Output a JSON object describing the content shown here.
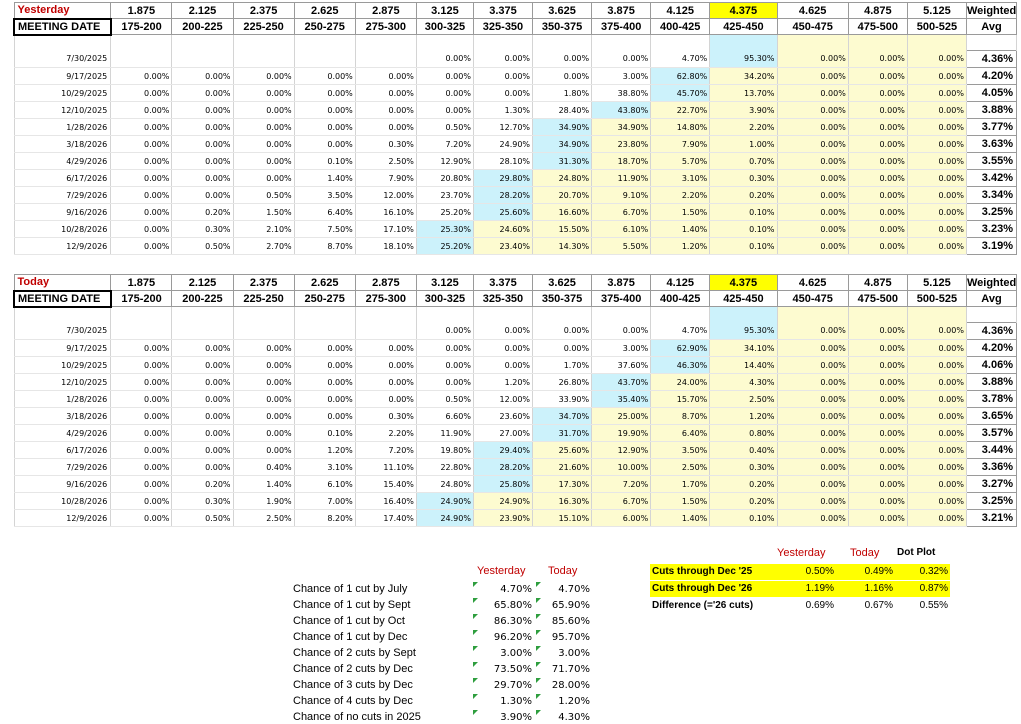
{
  "colors": {
    "red_label": "#c00000",
    "selected_header": "#ffff00",
    "highlight_cell": "#ccf2fb",
    "yellow_cell": "#fdfbd0"
  },
  "yesterday": {
    "label": "Yesterday",
    "meeting_date_label": "MEETING DATE",
    "weighted_label": "Weighted",
    "avg_label": "Avg",
    "mids": [
      "1.875",
      "2.125",
      "2.375",
      "2.625",
      "2.875",
      "3.125",
      "3.375",
      "3.625",
      "3.875",
      "4.125",
      "4.375",
      "4.625",
      "4.875",
      "5.125"
    ],
    "ranges": [
      "175-200",
      "200-225",
      "225-250",
      "250-275",
      "275-300",
      "300-325",
      "325-350",
      "350-375",
      "375-400",
      "400-425",
      "425-450",
      "450-475",
      "475-500",
      "500-525"
    ],
    "rows": [
      {
        "date": "7/30/2025",
        "vals": [
          "",
          "",
          "",
          "",
          "",
          "0.00%",
          "0.00%",
          "0.00%",
          "0.00%",
          "4.70%",
          "95.30%",
          "0.00%",
          "0.00%",
          "0.00%"
        ],
        "avg": "4.36%"
      },
      {
        "date": "9/17/2025",
        "vals": [
          "0.00%",
          "0.00%",
          "0.00%",
          "0.00%",
          "0.00%",
          "0.00%",
          "0.00%",
          "0.00%",
          "3.00%",
          "62.80%",
          "34.20%",
          "0.00%",
          "0.00%",
          "0.00%"
        ],
        "avg": "4.20%"
      },
      {
        "date": "10/29/2025",
        "vals": [
          "0.00%",
          "0.00%",
          "0.00%",
          "0.00%",
          "0.00%",
          "0.00%",
          "0.00%",
          "1.80%",
          "38.80%",
          "45.70%",
          "13.70%",
          "0.00%",
          "0.00%",
          "0.00%"
        ],
        "avg": "4.05%"
      },
      {
        "date": "12/10/2025",
        "vals": [
          "0.00%",
          "0.00%",
          "0.00%",
          "0.00%",
          "0.00%",
          "0.00%",
          "1.30%",
          "28.40%",
          "43.80%",
          "22.70%",
          "3.90%",
          "0.00%",
          "0.00%",
          "0.00%"
        ],
        "avg": "3.88%"
      },
      {
        "date": "1/28/2026",
        "vals": [
          "0.00%",
          "0.00%",
          "0.00%",
          "0.00%",
          "0.00%",
          "0.50%",
          "12.70%",
          "34.90%",
          "34.90%",
          "14.80%",
          "2.20%",
          "0.00%",
          "0.00%",
          "0.00%"
        ],
        "avg": "3.77%"
      },
      {
        "date": "3/18/2026",
        "vals": [
          "0.00%",
          "0.00%",
          "0.00%",
          "0.00%",
          "0.30%",
          "7.20%",
          "24.90%",
          "34.90%",
          "23.80%",
          "7.90%",
          "1.00%",
          "0.00%",
          "0.00%",
          "0.00%"
        ],
        "avg": "3.63%"
      },
      {
        "date": "4/29/2026",
        "vals": [
          "0.00%",
          "0.00%",
          "0.00%",
          "0.10%",
          "2.50%",
          "12.90%",
          "28.10%",
          "31.30%",
          "18.70%",
          "5.70%",
          "0.70%",
          "0.00%",
          "0.00%",
          "0.00%"
        ],
        "avg": "3.55%"
      },
      {
        "date": "6/17/2026",
        "vals": [
          "0.00%",
          "0.00%",
          "0.00%",
          "1.40%",
          "7.90%",
          "20.80%",
          "29.80%",
          "24.80%",
          "11.90%",
          "3.10%",
          "0.30%",
          "0.00%",
          "0.00%",
          "0.00%"
        ],
        "avg": "3.42%"
      },
      {
        "date": "7/29/2026",
        "vals": [
          "0.00%",
          "0.00%",
          "0.50%",
          "3.50%",
          "12.00%",
          "23.70%",
          "28.20%",
          "20.70%",
          "9.10%",
          "2.20%",
          "0.20%",
          "0.00%",
          "0.00%",
          "0.00%"
        ],
        "avg": "3.34%"
      },
      {
        "date": "9/16/2026",
        "vals": [
          "0.00%",
          "0.20%",
          "1.50%",
          "6.40%",
          "16.10%",
          "25.20%",
          "25.60%",
          "16.60%",
          "6.70%",
          "1.50%",
          "0.10%",
          "0.00%",
          "0.00%",
          "0.00%"
        ],
        "avg": "3.25%"
      },
      {
        "date": "10/28/2026",
        "vals": [
          "0.00%",
          "0.30%",
          "2.10%",
          "7.50%",
          "17.10%",
          "25.30%",
          "24.60%",
          "15.50%",
          "6.10%",
          "1.40%",
          "0.10%",
          "0.00%",
          "0.00%",
          "0.00%"
        ],
        "avg": "3.23%"
      },
      {
        "date": "12/9/2026",
        "vals": [
          "0.00%",
          "0.50%",
          "2.70%",
          "8.70%",
          "18.10%",
          "25.20%",
          "23.40%",
          "14.30%",
          "5.50%",
          "1.20%",
          "0.10%",
          "0.00%",
          "0.00%",
          "0.00%"
        ],
        "avg": "3.19%"
      }
    ]
  },
  "today": {
    "label": "Today",
    "meeting_date_label": "MEETING DATE",
    "weighted_label": "Weighted",
    "avg_label": "Avg",
    "mids": [
      "1.875",
      "2.125",
      "2.375",
      "2.625",
      "2.875",
      "3.125",
      "3.375",
      "3.625",
      "3.875",
      "4.125",
      "4.375",
      "4.625",
      "4.875",
      "5.125"
    ],
    "ranges": [
      "175-200",
      "200-225",
      "225-250",
      "250-275",
      "275-300",
      "300-325",
      "325-350",
      "350-375",
      "375-400",
      "400-425",
      "425-450",
      "450-475",
      "475-500",
      "500-525"
    ],
    "rows": [
      {
        "date": "7/30/2025",
        "vals": [
          "",
          "",
          "",
          "",
          "",
          "0.00%",
          "0.00%",
          "0.00%",
          "0.00%",
          "4.70%",
          "95.30%",
          "0.00%",
          "0.00%",
          "0.00%"
        ],
        "avg": "4.36%"
      },
      {
        "date": "9/17/2025",
        "vals": [
          "0.00%",
          "0.00%",
          "0.00%",
          "0.00%",
          "0.00%",
          "0.00%",
          "0.00%",
          "0.00%",
          "3.00%",
          "62.90%",
          "34.10%",
          "0.00%",
          "0.00%",
          "0.00%"
        ],
        "avg": "4.20%"
      },
      {
        "date": "10/29/2025",
        "vals": [
          "0.00%",
          "0.00%",
          "0.00%",
          "0.00%",
          "0.00%",
          "0.00%",
          "0.00%",
          "1.70%",
          "37.60%",
          "46.30%",
          "14.40%",
          "0.00%",
          "0.00%",
          "0.00%"
        ],
        "avg": "4.06%"
      },
      {
        "date": "12/10/2025",
        "vals": [
          "0.00%",
          "0.00%",
          "0.00%",
          "0.00%",
          "0.00%",
          "0.00%",
          "1.20%",
          "26.80%",
          "43.70%",
          "24.00%",
          "4.30%",
          "0.00%",
          "0.00%",
          "0.00%"
        ],
        "avg": "3.88%"
      },
      {
        "date": "1/28/2026",
        "vals": [
          "0.00%",
          "0.00%",
          "0.00%",
          "0.00%",
          "0.00%",
          "0.50%",
          "12.00%",
          "33.90%",
          "35.40%",
          "15.70%",
          "2.50%",
          "0.00%",
          "0.00%",
          "0.00%"
        ],
        "avg": "3.78%"
      },
      {
        "date": "3/18/2026",
        "vals": [
          "0.00%",
          "0.00%",
          "0.00%",
          "0.00%",
          "0.30%",
          "6.60%",
          "23.60%",
          "34.70%",
          "25.00%",
          "8.70%",
          "1.20%",
          "0.00%",
          "0.00%",
          "0.00%"
        ],
        "avg": "3.65%"
      },
      {
        "date": "4/29/2026",
        "vals": [
          "0.00%",
          "0.00%",
          "0.00%",
          "0.10%",
          "2.20%",
          "11.90%",
          "27.00%",
          "31.70%",
          "19.90%",
          "6.40%",
          "0.80%",
          "0.00%",
          "0.00%",
          "0.00%"
        ],
        "avg": "3.57%"
      },
      {
        "date": "6/17/2026",
        "vals": [
          "0.00%",
          "0.00%",
          "0.00%",
          "1.20%",
          "7.20%",
          "19.80%",
          "29.40%",
          "25.60%",
          "12.90%",
          "3.50%",
          "0.40%",
          "0.00%",
          "0.00%",
          "0.00%"
        ],
        "avg": "3.44%"
      },
      {
        "date": "7/29/2026",
        "vals": [
          "0.00%",
          "0.00%",
          "0.40%",
          "3.10%",
          "11.10%",
          "22.80%",
          "28.20%",
          "21.60%",
          "10.00%",
          "2.50%",
          "0.30%",
          "0.00%",
          "0.00%",
          "0.00%"
        ],
        "avg": "3.36%"
      },
      {
        "date": "9/16/2026",
        "vals": [
          "0.00%",
          "0.20%",
          "1.40%",
          "6.10%",
          "15.40%",
          "24.80%",
          "25.80%",
          "17.30%",
          "7.20%",
          "1.70%",
          "0.20%",
          "0.00%",
          "0.00%",
          "0.00%"
        ],
        "avg": "3.27%"
      },
      {
        "date": "10/28/2026",
        "vals": [
          "0.00%",
          "0.30%",
          "1.90%",
          "7.00%",
          "16.40%",
          "24.90%",
          "24.90%",
          "16.30%",
          "6.70%",
          "1.50%",
          "0.20%",
          "0.00%",
          "0.00%",
          "0.00%"
        ],
        "avg": "3.25%"
      },
      {
        "date": "12/9/2026",
        "vals": [
          "0.00%",
          "0.50%",
          "2.50%",
          "8.20%",
          "17.40%",
          "24.90%",
          "23.90%",
          "15.10%",
          "6.00%",
          "1.40%",
          "0.10%",
          "0.00%",
          "0.00%",
          "0.00%"
        ],
        "avg": "3.21%"
      }
    ]
  },
  "probabilities": {
    "yesterday_label": "Yesterday",
    "today_label": "Today",
    "items": [
      {
        "label": "Chance of 1 cut by July",
        "yesterday": "4.70%",
        "today": "4.70%"
      },
      {
        "label": "Chance of 1 cut by Sept",
        "yesterday": "65.80%",
        "today": "65.90%"
      },
      {
        "label": "Chance of 1 cut by Oct",
        "yesterday": "86.30%",
        "today": "85.60%"
      },
      {
        "label": "Chance of 1 cut by Dec",
        "yesterday": "96.20%",
        "today": "95.70%"
      },
      {
        "label": "Chance of 2 cuts by Sept",
        "yesterday": "3.00%",
        "today": "3.00%"
      },
      {
        "label": "Chance of 2 cuts by Dec",
        "yesterday": "73.50%",
        "today": "71.70%"
      },
      {
        "label": "Chance of 3 cuts by Dec",
        "yesterday": "29.70%",
        "today": "28.00%"
      },
      {
        "label": "Chance of 4 cuts by Dec",
        "yesterday": "1.30%",
        "today": "1.20%"
      },
      {
        "label": "Chance of no cuts in 2025",
        "yesterday": "3.90%",
        "today": "4.30%"
      }
    ]
  },
  "cuts": {
    "yesterday_label": "Yesterday",
    "today_label": "Today",
    "dot_plot_label": "Dot Plot",
    "rows": [
      {
        "label": "Cuts through Dec '25",
        "yesterday": "0.50%",
        "today": "0.49%",
        "dot": "0.32%"
      },
      {
        "label": "Cuts through Dec '26",
        "yesterday": "1.19%",
        "today": "1.16%",
        "dot": "0.87%"
      },
      {
        "label": "Difference (='26 cuts)",
        "yesterday": "0.69%",
        "today": "0.67%",
        "dot": "0.55%"
      }
    ]
  }
}
